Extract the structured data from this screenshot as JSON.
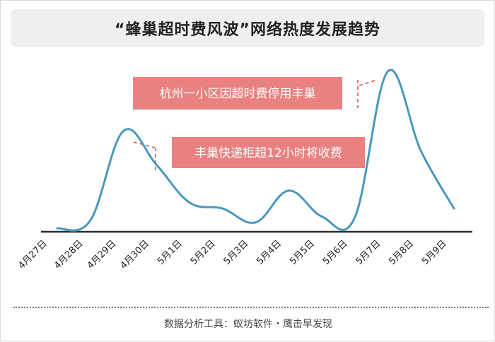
{
  "title": "“蜂巢超时费风波”网络热度发展趋势",
  "source": "数据分析工具：蚁坊软件・鹰击早发现",
  "chart_data": {
    "type": "line",
    "categories": [
      "4月27日",
      "4月28日",
      "4月29日",
      "4月30日",
      "5月1日",
      "5月2日",
      "5月3日",
      "5月4日",
      "5月5日",
      "5月6日",
      "5月7日",
      "5月8日",
      "5月9日"
    ],
    "values": [
      2,
      10,
      100,
      66,
      28,
      22,
      8,
      40,
      14,
      13,
      160,
      80,
      22
    ],
    "ylim": [
      0,
      170
    ],
    "grid": false,
    "line_color": "#4b97bc",
    "annotations": [
      {
        "text": "丰巢快递柜超12小时将收费",
        "color": "#e98181"
      },
      {
        "text": "杭州一小区因超时费停用丰巢",
        "color": "#e98181"
      }
    ]
  }
}
